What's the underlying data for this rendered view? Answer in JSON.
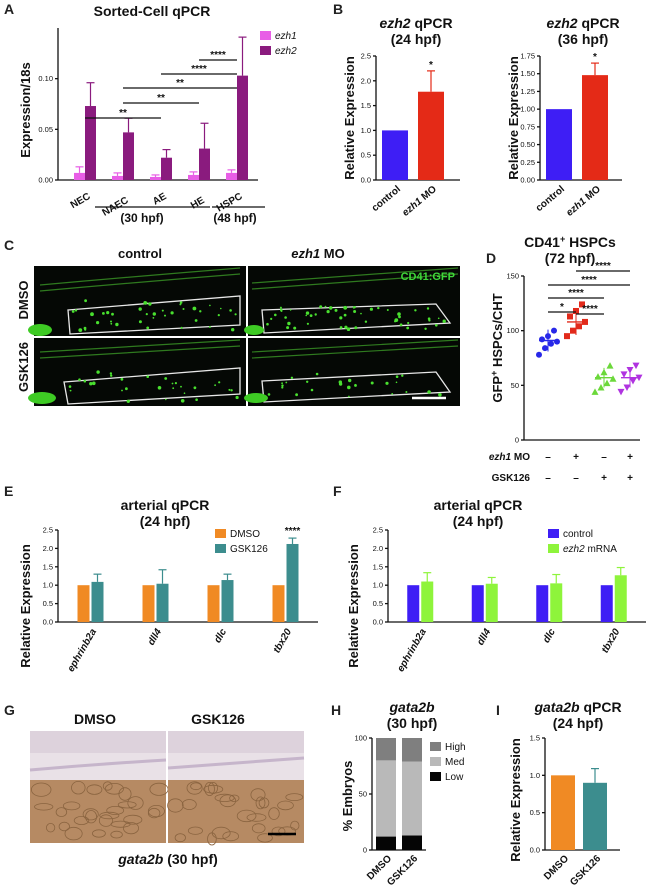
{
  "panels": {
    "A": {
      "letter": "A",
      "chart_data": {
        "type": "bar",
        "title": "Sorted-Cell qPCR",
        "ylabel": "Expression/18s",
        "ylim": [
          0,
          0.15
        ],
        "yticks": [
          "0.00",
          "0.05",
          "0.10"
        ],
        "categories": [
          "NEC",
          "NAEC",
          "AE",
          "HE",
          "HSPC"
        ],
        "series": [
          {
            "name": "ezh1",
            "color": "#e85ee6",
            "values": [
              0.007,
              0.004,
              0.003,
              0.005,
              0.007
            ],
            "errors": [
              0.006,
              0.003,
              0.002,
              0.003,
              0.003
            ]
          },
          {
            "name": "ezh2",
            "color": "#8a1b7e",
            "values": [
              0.073,
              0.047,
              0.022,
              0.031,
              0.103
            ],
            "errors": [
              0.023,
              0.014,
              0.008,
              0.025,
              0.038
            ]
          }
        ],
        "groups": [
          "(30 hpf)",
          "(48 hpf)"
        ],
        "significance": [
          "**",
          "**",
          "**",
          "****",
          "****"
        ]
      }
    },
    "B": {
      "letter": "B",
      "ylabel": "Relative Expression",
      "charts": [
        {
          "type": "bar",
          "gene": "ezh2",
          "title_suffix": " qPCR",
          "subtitle": "(24 hpf)",
          "ylim": [
            0,
            2.5
          ],
          "yticks": [
            "0.0",
            "0.5",
            "1.0",
            "1.5",
            "2.0",
            "2.5"
          ],
          "categories": [
            "control",
            "ezh1 MO"
          ],
          "cat_italic": [
            "",
            "ezh1"
          ],
          "cat_rest": [
            "control",
            " MO"
          ],
          "values": [
            1.0,
            1.78
          ],
          "errors": [
            0,
            0.42
          ],
          "colors": [
            "#3e1ef5",
            "#e42a17"
          ],
          "significance": "*"
        },
        {
          "type": "bar",
          "gene": "ezh2",
          "title_suffix": " qPCR",
          "subtitle": "(36 hpf)",
          "ylim": [
            0,
            1.75
          ],
          "yticks": [
            "0.00",
            "0.25",
            "0.50",
            "0.75",
            "1.00",
            "1.25",
            "1.50",
            "1.75"
          ],
          "categories": [
            "control",
            "ezh1 MO"
          ],
          "cat_italic": [
            "",
            "ezh1"
          ],
          "cat_rest": [
            "control",
            " MO"
          ],
          "values": [
            1.0,
            1.48
          ],
          "errors": [
            0,
            0.17
          ],
          "colors": [
            "#3e1ef5",
            "#e42a17"
          ],
          "significance": "*"
        }
      ]
    },
    "C": {
      "letter": "C",
      "col_labels": [
        "control",
        "ezh1 MO"
      ],
      "col_italic": [
        "",
        "ezh1"
      ],
      "col_rest": [
        "control",
        " MO"
      ],
      "row_labels": [
        "DMSO",
        "GSK126"
      ],
      "reporter": "CD41:GFP"
    },
    "D": {
      "letter": "D",
      "chart_data": {
        "type": "scatter",
        "title": "CD41+ HSPCs",
        "title_main": "CD41",
        "title_sup": "+",
        "title_rest": " HSPCs",
        "subtitle": "(72 hpf)",
        "ylabel_main": "GFP",
        "ylabel_sup": "+",
        "ylabel_rest": " HSPCs/CHT",
        "ylim": [
          0,
          150
        ],
        "yticks": [
          "0",
          "50",
          "100",
          "150"
        ],
        "groups": [
          {
            "name": "control DMSO",
            "color": "#2727e8",
            "marker": "circle",
            "mean": 91,
            "sd": 10,
            "points": [
              78,
              84,
              88,
              90,
              92,
              95,
              100
            ]
          },
          {
            "name": "ezh1 MO DMSO",
            "color": "#e22a1b",
            "marker": "square",
            "mean": 108,
            "sd": 12,
            "points": [
              95,
              100,
              104,
              108,
              113,
              118,
              124
            ]
          },
          {
            "name": "control GSK126",
            "color": "#6bd83a",
            "marker": "triangle",
            "mean": 57,
            "sd": 9,
            "points": [
              44,
              48,
              52,
              56,
              58,
              62,
              68
            ]
          },
          {
            "name": "ezh1 MO GSK126",
            "color": "#b033e0",
            "marker": "triangle-down",
            "mean": 57,
            "sd": 9,
            "points": [
              44,
              48,
              54,
              57,
              60,
              64,
              68
            ]
          }
        ],
        "row1_label_italic": "ezh1",
        "row1_label_rest": " MO",
        "row2_label": "GSK126",
        "row1_signs": [
          "–",
          "+",
          "–",
          "+"
        ],
        "row2_signs": [
          "–",
          "–",
          "+",
          "+"
        ],
        "significance": [
          "*",
          "****",
          "****",
          "****",
          "****"
        ]
      }
    },
    "E": {
      "letter": "E",
      "chart_data": {
        "type": "bar",
        "title": "arterial qPCR",
        "subtitle": "(24 hpf)",
        "ylabel": "Relative Expression",
        "ylim": [
          0,
          2.5
        ],
        "yticks": [
          "0.0",
          "0.5",
          "1.0",
          "1.5",
          "2.0",
          "2.5"
        ],
        "categories": [
          "ephrinb2a",
          "dll4",
          "dlc",
          "tbx20"
        ],
        "series": [
          {
            "name": "DMSO",
            "color": "#f08a24",
            "values": [
              1.0,
              1.0,
              1.0,
              1.0
            ],
            "errors": [
              0,
              0,
              0,
              0
            ]
          },
          {
            "name": "GSK126",
            "color": "#3c8d8e",
            "values": [
              1.09,
              1.04,
              1.14,
              2.12
            ],
            "errors": [
              0.21,
              0.38,
              0.16,
              0.16
            ]
          }
        ],
        "significance": "****"
      }
    },
    "F": {
      "letter": "F",
      "chart_data": {
        "type": "bar",
        "title": "arterial qPCR",
        "subtitle": "(24 hpf)",
        "ylabel": "Relative Expression",
        "ylim": [
          0,
          2.5
        ],
        "yticks": [
          "0.0",
          "0.5",
          "1.0",
          "1.5",
          "2.0",
          "2.5"
        ],
        "categories": [
          "ephrinb2a",
          "dll4",
          "dlc",
          "tbx20"
        ],
        "series": [
          {
            "name": "control",
            "color": "#3e1ef5",
            "values": [
              1.0,
              1.0,
              1.0,
              1.0
            ],
            "errors": [
              0,
              0,
              0,
              0
            ]
          },
          {
            "name": "ezh2 mRNA",
            "name_italic": "ezh2",
            "name_rest": " mRNA",
            "color": "#8ef43b",
            "values": [
              1.1,
              1.04,
              1.05,
              1.27
            ],
            "errors": [
              0.24,
              0.17,
              0.24,
              0.21
            ]
          }
        ]
      }
    },
    "G": {
      "letter": "G",
      "col_labels": [
        "DMSO",
        "GSK126"
      ],
      "caption_italic": "gata2b",
      "caption_rest": " (30 hpf)"
    },
    "H": {
      "letter": "H",
      "chart_data": {
        "type": "bar",
        "title": "gata2b",
        "subtitle": "(30 hpf)",
        "ylabel": "% Embryos",
        "ylim": [
          0,
          100
        ],
        "yticks": [
          "0",
          "50",
          "100"
        ],
        "categories": [
          "DMSO",
          "GSK126"
        ],
        "series": [
          {
            "name": "High",
            "color": "#7f7f7f",
            "values": [
              20,
              21
            ]
          },
          {
            "name": "Med",
            "color": "#b9b9b9",
            "values": [
              68,
              66
            ]
          },
          {
            "name": "Low",
            "color": "#050505",
            "values": [
              12,
              13
            ]
          }
        ]
      }
    },
    "I": {
      "letter": "I",
      "chart_data": {
        "type": "bar",
        "title": "gata2b",
        "title_suffix": " qPCR",
        "subtitle": "(24 hpf)",
        "ylabel": "Relative Expression",
        "ylim": [
          0,
          1.5
        ],
        "yticks": [
          "0.0",
          "0.5",
          "1.0",
          "1.5"
        ],
        "categories": [
          "DMSO",
          "GSK126"
        ],
        "values": [
          1.0,
          0.9
        ],
        "errors": [
          0,
          0.19
        ],
        "colors": [
          "#f08a24",
          "#3c8d8e"
        ]
      }
    }
  }
}
